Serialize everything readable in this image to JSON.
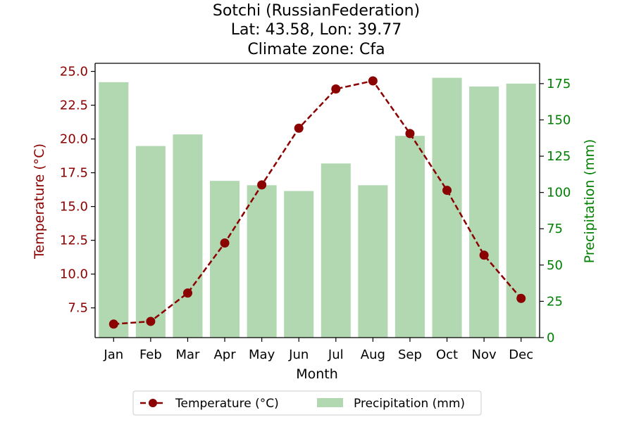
{
  "chart_data": {
    "type": "bar+line",
    "title_lines": [
      "Sotchi (RussianFederation)",
      "Lat: 43.58, Lon: 39.77",
      "Climate zone: Cfa"
    ],
    "xlabel": "Month",
    "ylabel_left": "Temperature (°C)",
    "ylabel_right": "Precipitation (mm)",
    "categories": [
      "Jan",
      "Feb",
      "Mar",
      "Apr",
      "May",
      "Jun",
      "Jul",
      "Aug",
      "Sep",
      "Oct",
      "Nov",
      "Dec"
    ],
    "temperature": [
      6.3,
      6.5,
      8.6,
      12.3,
      16.6,
      20.8,
      23.7,
      24.3,
      20.4,
      16.2,
      11.4,
      8.2
    ],
    "precipitation": [
      176,
      132,
      140,
      108,
      105,
      101,
      120,
      105,
      139,
      179,
      173,
      175
    ],
    "ylim_left": [
      5.3,
      25.6
    ],
    "ylim_right": [
      0,
      189
    ],
    "left_ticks": [
      "7.5",
      "10.0",
      "12.5",
      "15.0",
      "17.5",
      "20.0",
      "22.5",
      "25.0"
    ],
    "right_ticks": [
      "0",
      "25",
      "50",
      "75",
      "100",
      "125",
      "150",
      "175"
    ],
    "legend": [
      "Temperature (°C)",
      "Precipitation (mm)"
    ],
    "legend_position": "bottom-center",
    "colors": {
      "temperature": "#8b0000",
      "precipitation": "#b2d8b2",
      "left_axis": "#8b0000",
      "right_axis": "#008000"
    }
  }
}
